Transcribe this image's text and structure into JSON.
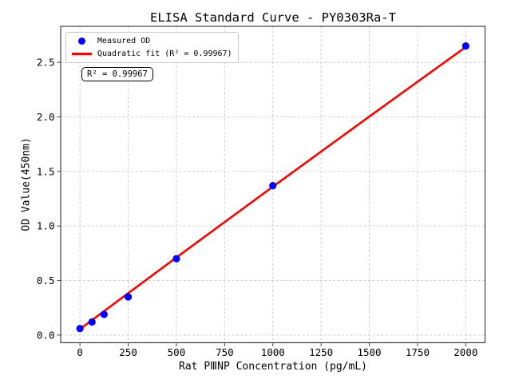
{
  "chart_data": {
    "type": "scatter",
    "title": "ELISA Standard Curve - PY0303Ra-T",
    "xlabel": "Rat PⅢNP Concentration (pg/mL)",
    "ylabel": "OD Value(450nm)",
    "xlim": [
      -100,
      2100
    ],
    "ylim": [
      -0.07,
      2.83
    ],
    "grid": true,
    "grid_style": "dashed",
    "x_ticks": {
      "values": [
        0,
        250,
        500,
        750,
        1000,
        1250,
        1500,
        1750,
        2000
      ],
      "labels": [
        "0",
        "250",
        "500",
        "750",
        "1000",
        "1250",
        "1500",
        "1750",
        "2000"
      ]
    },
    "y_ticks": {
      "values": [
        0.0,
        0.5,
        1.0,
        1.5,
        2.0,
        2.5
      ],
      "labels": [
        "0.0",
        "0.5",
        "1.0",
        "1.5",
        "2.0",
        "2.5"
      ]
    },
    "series": [
      {
        "name": "Measured OD",
        "kind": "scatter",
        "color": "#0000ff",
        "points": [
          [
            0,
            0.06
          ],
          [
            62.5,
            0.12
          ],
          [
            125,
            0.19
          ],
          [
            250,
            0.35
          ],
          [
            500,
            0.7
          ],
          [
            1000,
            1.37
          ],
          [
            2000,
            2.65
          ]
        ]
      },
      {
        "name": "Quadratic fit (R² = 0.99967)",
        "kind": "line",
        "color": "#ff0000",
        "r_squared": 0.99967,
        "points": [
          [
            0,
            0.055
          ],
          [
            250,
            0.384
          ],
          [
            500,
            0.711
          ],
          [
            750,
            1.036
          ],
          [
            1000,
            1.36
          ],
          [
            1250,
            1.682
          ],
          [
            1500,
            2.003
          ],
          [
            1750,
            2.322
          ],
          [
            2000,
            2.64
          ]
        ]
      }
    ],
    "legend": {
      "position": "upper-left",
      "entries": [
        {
          "label": "Measured OD",
          "marker": "dot",
          "color": "#0000ff"
        },
        {
          "label": "Quadratic fit (R² = 0.99967)",
          "marker": "line",
          "color": "#ff0000"
        }
      ]
    },
    "annotation": "R² = 0.99967",
    "colors": {
      "grid": "#c9c9c9",
      "spine": "#404040",
      "text": "#000000",
      "background": "#ffffff"
    }
  }
}
